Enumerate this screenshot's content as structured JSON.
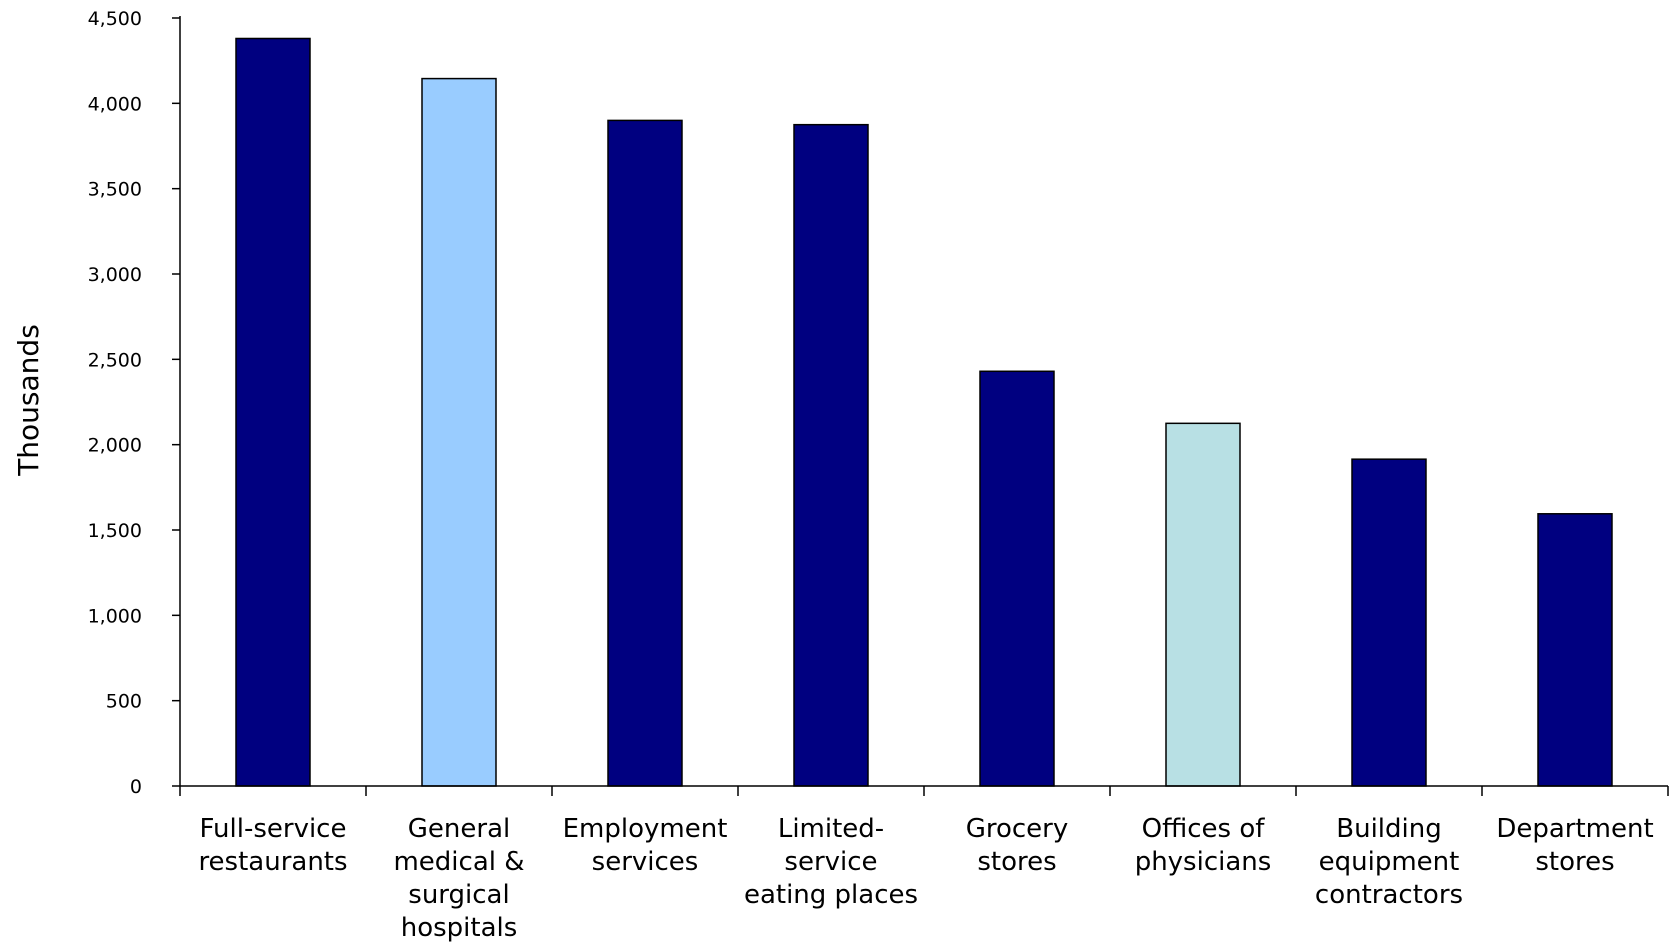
{
  "chart_data": {
    "type": "bar",
    "categories": [
      [
        "Full-service",
        "restaurants"
      ],
      [
        "General",
        "medical &",
        "surgical",
        "hospitals"
      ],
      [
        "Employment",
        "services"
      ],
      [
        "Limited-",
        "service",
        "eating places"
      ],
      [
        "Grocery",
        "stores"
      ],
      [
        "Offices of",
        "physicians"
      ],
      [
        "Building",
        "equipment",
        "contractors"
      ],
      [
        "Department",
        "stores"
      ]
    ],
    "values": [
      4380,
      4145,
      3900,
      3875,
      2430,
      2125,
      1915,
      1595
    ],
    "bar_colors": [
      "#000080",
      "#99ccff",
      "#000080",
      "#000080",
      "#000080",
      "#b8e0e4",
      "#000080",
      "#000080"
    ],
    "title": "",
    "xlabel": "",
    "ylabel": "Thousands",
    "ylim": [
      0,
      4500
    ],
    "yticks": [
      0,
      500,
      1000,
      1500,
      2000,
      2500,
      3000,
      3500,
      4000,
      4500
    ],
    "ytick_labels": [
      "0",
      "500",
      "1,000",
      "1,500",
      "2,000",
      "2,500",
      "3,000",
      "3,500",
      "4,000",
      "4,500"
    ],
    "grid": false,
    "legend": false
  }
}
